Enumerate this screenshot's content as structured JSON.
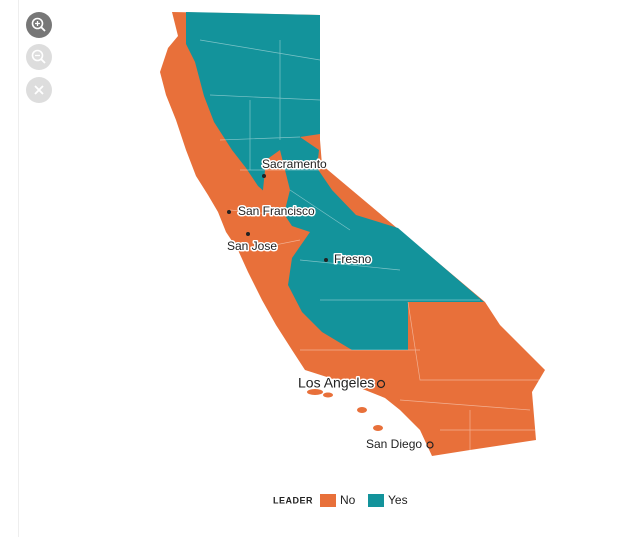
{
  "map": {
    "cities": [
      {
        "label": "Sacramento"
      },
      {
        "label": "San Francisco"
      },
      {
        "label": "San Jose"
      },
      {
        "label": "Fresno"
      },
      {
        "label": "Los Angeles"
      },
      {
        "label": "San Diego"
      }
    ],
    "legend": {
      "title": "LEADER",
      "items": [
        {
          "label": "No",
          "color": "#e8703a"
        },
        {
          "label": "Yes",
          "color": "#13939b"
        }
      ]
    }
  }
}
